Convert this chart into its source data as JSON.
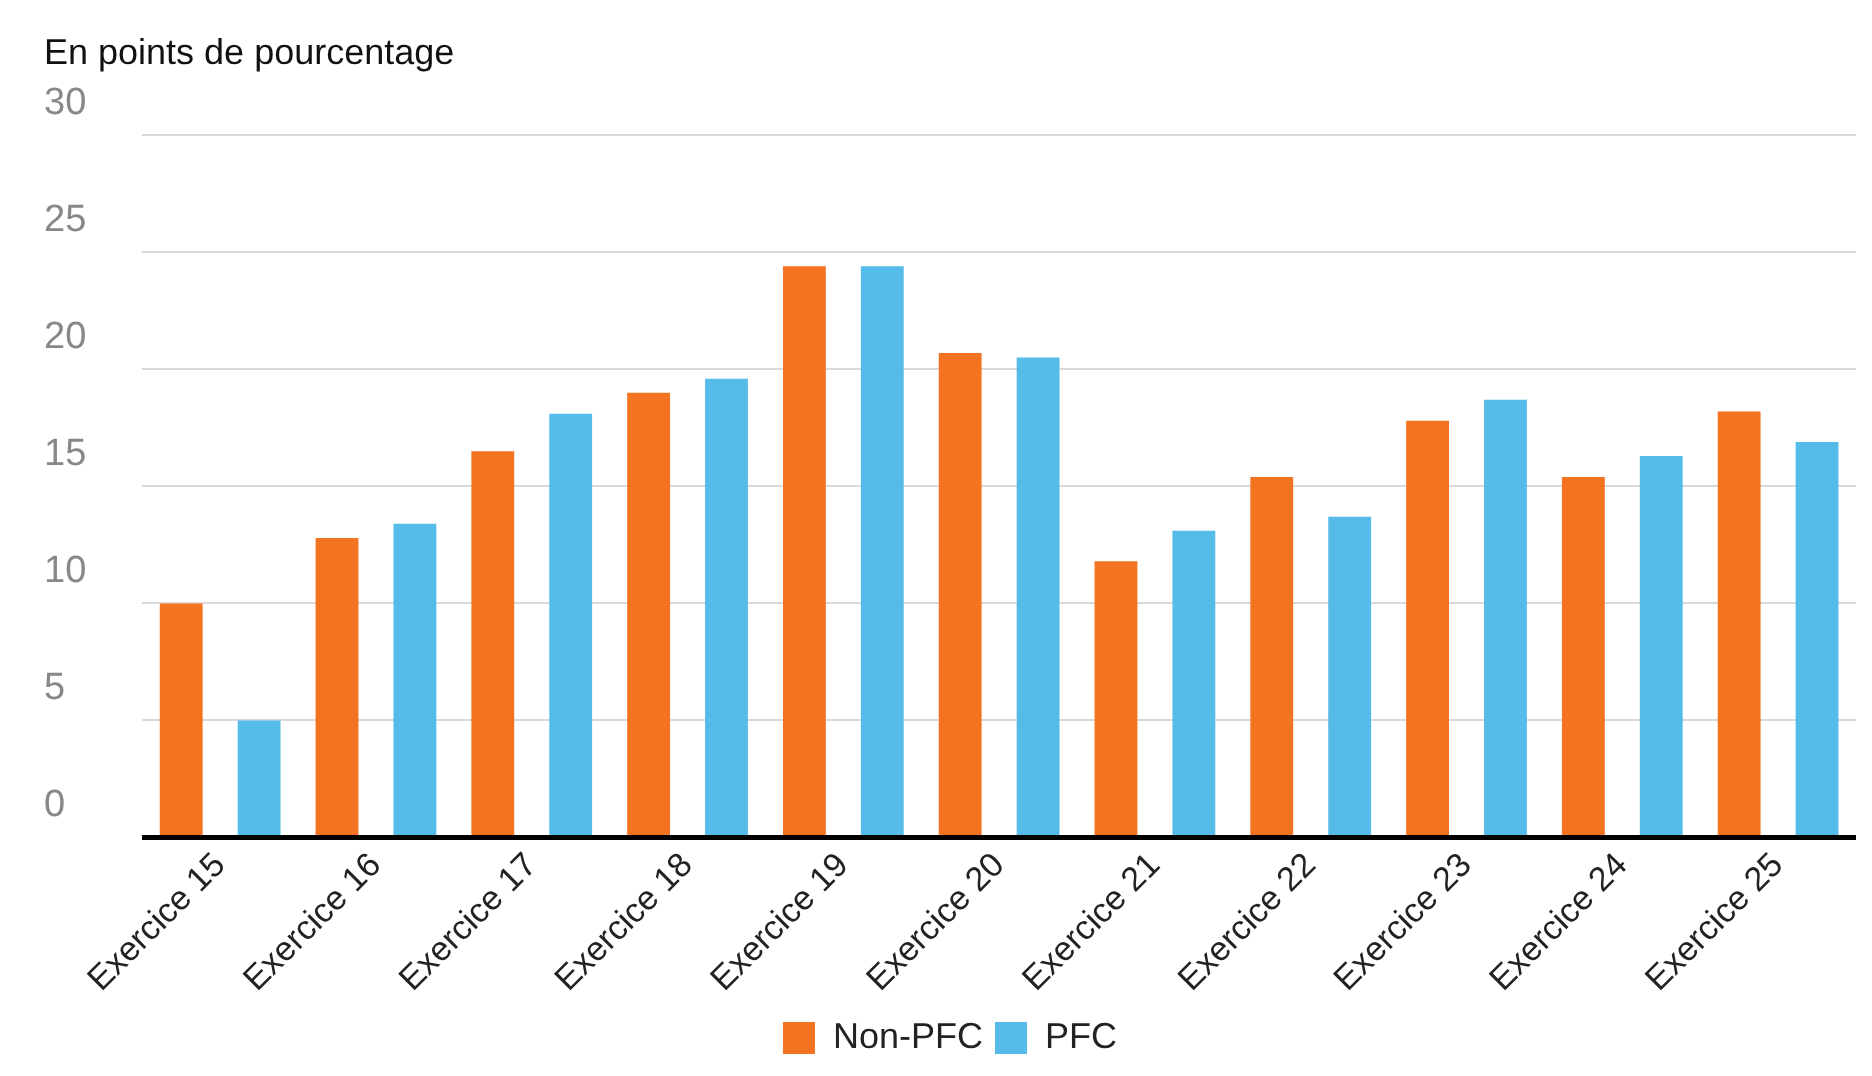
{
  "chart_data": {
    "type": "bar",
    "ylabel": "En points de pourcentage",
    "categories": [
      "Exercice 15",
      "Exercice 16",
      "Exercice 17",
      "Exercice 18",
      "Exercice 19",
      "Exercice 20",
      "Exercice 21",
      "Exercice 22",
      "Exercice 23",
      "Exercice 24",
      "Exercice 25"
    ],
    "series": [
      {
        "name": "Non-PFC",
        "color": "#f47321",
        "values": [
          10.0,
          12.8,
          16.5,
          19.0,
          24.4,
          20.7,
          11.8,
          15.4,
          17.8,
          15.4,
          18.2
        ]
      },
      {
        "name": "PFC",
        "color": "#55bbe8",
        "values": [
          5.0,
          13.4,
          18.1,
          19.6,
          24.4,
          20.5,
          13.1,
          13.7,
          18.7,
          16.3,
          16.9
        ]
      }
    ],
    "ylim": [
      0,
      30
    ],
    "yticks": [
      0,
      5,
      10,
      15,
      20,
      25,
      30
    ],
    "grid": "y",
    "legend": "bottom"
  }
}
